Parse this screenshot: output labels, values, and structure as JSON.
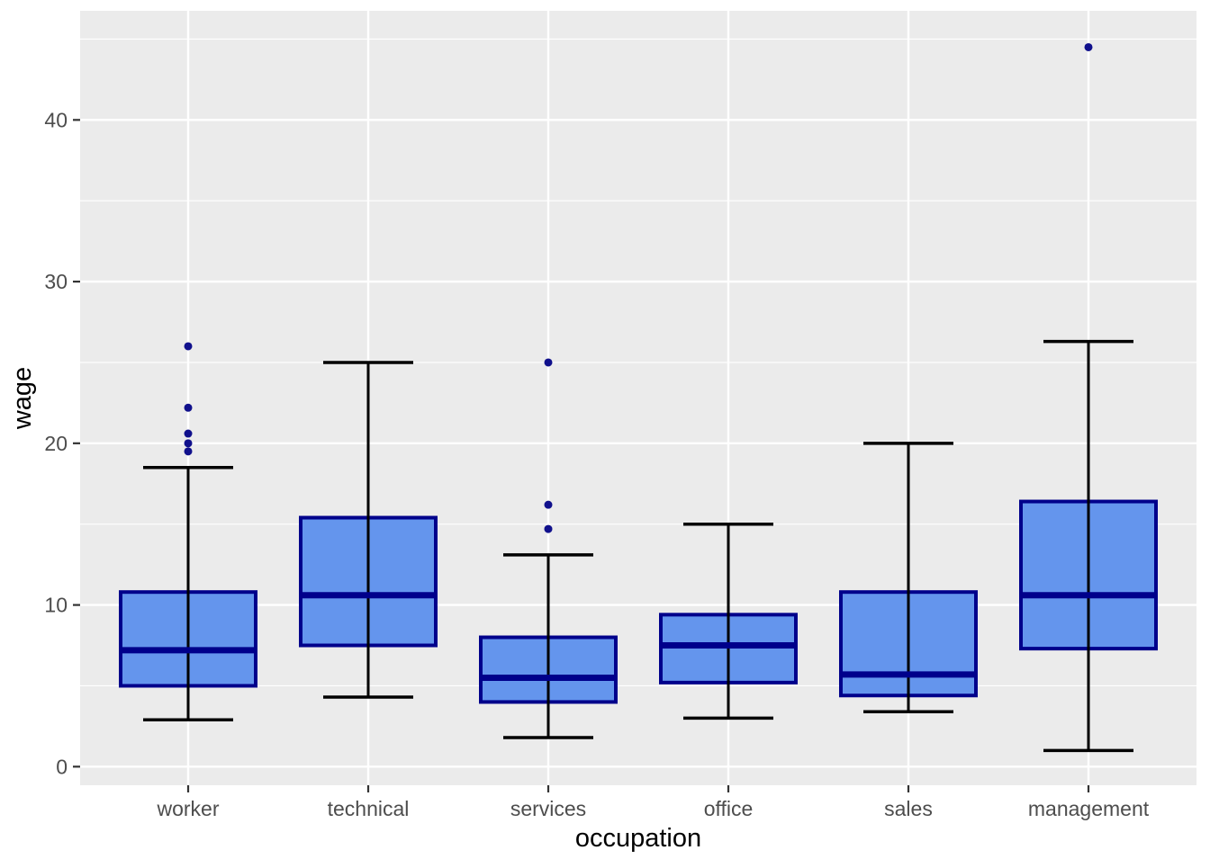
{
  "chart_data": {
    "type": "boxplot",
    "title": "",
    "xlabel": "occupation",
    "ylabel": "wage",
    "categories": [
      "worker",
      "technical",
      "services",
      "office",
      "sales",
      "management"
    ],
    "series": [
      {
        "name": "worker",
        "whisker_low": 2.9,
        "q1": 5.0,
        "median": 7.2,
        "q3": 10.8,
        "whisker_high": 18.5,
        "outliers": [
          19.5,
          20.0,
          20.6,
          22.2,
          26.0
        ]
      },
      {
        "name": "technical",
        "whisker_low": 4.3,
        "q1": 7.5,
        "median": 10.6,
        "q3": 15.4,
        "whisker_high": 25.0,
        "outliers": []
      },
      {
        "name": "services",
        "whisker_low": 1.8,
        "q1": 4.0,
        "median": 5.5,
        "q3": 8.0,
        "whisker_high": 13.1,
        "outliers": [
          14.7,
          16.2,
          25.0
        ]
      },
      {
        "name": "office",
        "whisker_low": 3.0,
        "q1": 5.2,
        "median": 7.5,
        "q3": 9.4,
        "whisker_high": 15.0,
        "outliers": []
      },
      {
        "name": "sales",
        "whisker_low": 3.4,
        "q1": 4.4,
        "median": 5.7,
        "q3": 10.8,
        "whisker_high": 20.0,
        "outliers": []
      },
      {
        "name": "management",
        "whisker_low": 1.0,
        "q1": 7.3,
        "median": 10.6,
        "q3": 16.4,
        "whisker_high": 26.3,
        "outliers": [
          44.5
        ]
      }
    ],
    "yticks": [
      0,
      10,
      20,
      30,
      40
    ],
    "yticks_minor": [
      5,
      15,
      25,
      35,
      45
    ],
    "ylim": [
      -1.15,
      46.75
    ],
    "grid": true,
    "legend": false,
    "colors": {
      "background": "#FFFFFF",
      "panel": "#EBEBEB",
      "grid": "#FFFFFF",
      "box_fill": "#6495ED",
      "box_border": "#00008B",
      "median": "#00008B",
      "whisker": "#000000",
      "outlier": "#10108C",
      "tick_mark": "#333333",
      "tick_label": "#4D4D4D",
      "axis_title": "#000000"
    }
  }
}
